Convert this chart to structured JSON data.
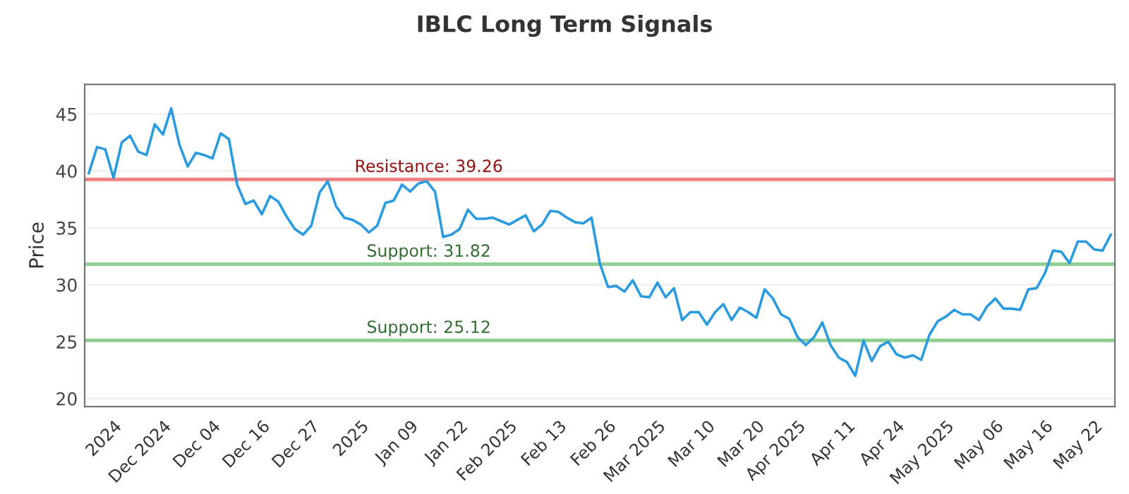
{
  "chart_data": {
    "type": "line",
    "title": "IBLC Long Term Signals",
    "ylabel": "Price",
    "categories": [
      null,
      null,
      null,
      "2024",
      null,
      null,
      null,
      null,
      null,
      "Dec 2024",
      null,
      null,
      null,
      null,
      null,
      "Dec 04",
      null,
      null,
      null,
      null,
      null,
      "Dec 16",
      null,
      null,
      null,
      null,
      null,
      "Dec 27",
      null,
      null,
      null,
      null,
      null,
      "2025",
      null,
      null,
      null,
      null,
      null,
      "Jan 09",
      null,
      null,
      null,
      null,
      null,
      "Jan 22",
      null,
      null,
      null,
      null,
      null,
      "Feb 2025",
      null,
      null,
      null,
      null,
      null,
      "Feb 13",
      null,
      null,
      null,
      null,
      null,
      "Feb 26",
      null,
      null,
      null,
      null,
      null,
      "Mar 2025",
      null,
      null,
      null,
      null,
      null,
      "Mar 10",
      null,
      null,
      null,
      null,
      null,
      "Mar 20",
      null,
      null,
      null,
      null,
      "Apr 2025",
      null,
      null,
      null,
      null,
      null,
      "Apr 11",
      null,
      null,
      null,
      null,
      null,
      "Apr 24",
      null,
      null,
      null,
      null,
      null,
      "May 2025",
      null,
      null,
      null,
      null,
      null,
      "May 06",
      null,
      null,
      null,
      null,
      null,
      "May 16",
      null,
      null,
      null,
      null,
      null,
      "May 22",
      null,
      null
    ],
    "series": [
      {
        "color": "#2b9be0",
        "values": [
          39.8,
          42.1,
          41.9,
          39.4,
          42.5,
          43.1,
          41.7,
          41.4,
          44.1,
          43.2,
          45.5,
          42.3,
          40.4,
          41.6,
          41.4,
          41.1,
          43.3,
          42.8,
          38.8,
          37.1,
          37.4,
          36.2,
          37.8,
          37.3,
          36.0,
          34.9,
          34.4,
          35.2,
          38.1,
          39.1,
          36.9,
          35.9,
          35.7,
          35.3,
          34.6,
          35.2,
          37.2,
          37.4,
          38.8,
          38.2,
          38.9,
          39.1,
          38.2,
          34.2,
          34.4,
          34.9,
          36.6,
          35.8,
          35.8,
          35.9,
          35.6,
          35.3,
          35.7,
          36.1,
          34.7,
          35.3,
          36.5,
          36.4,
          35.9,
          35.5,
          35.4,
          35.9,
          31.9,
          29.8,
          29.9,
          29.4,
          30.4,
          29.0,
          28.9,
          30.2,
          28.9,
          29.7,
          26.9,
          27.6,
          27.6,
          26.5,
          27.6,
          28.3,
          26.9,
          28.0,
          27.6,
          27.1,
          29.6,
          28.8,
          27.4,
          27.0,
          25.4,
          24.7,
          25.4,
          26.7,
          24.7,
          23.6,
          23.2,
          22.0,
          25.1,
          23.3,
          24.6,
          25.0,
          23.9,
          23.6,
          23.8,
          23.4,
          25.6,
          26.8,
          27.2,
          27.8,
          27.4,
          27.4,
          26.9,
          28.1,
          28.8,
          27.9,
          27.9,
          27.8,
          29.6,
          29.7,
          31.0,
          33.0,
          32.9,
          31.9,
          33.8,
          33.8,
          33.1,
          33.0,
          34.4
        ]
      }
    ],
    "ylim": [
      19.3,
      47.6
    ],
    "yticks": [
      20,
      25,
      30,
      35,
      40,
      45
    ],
    "grid": "y",
    "ref_lines": [
      {
        "axis": "y",
        "value": 39.26,
        "label": "Resistance: 39.26",
        "color": "#f07f7f"
      },
      {
        "axis": "y",
        "value": 31.82,
        "label": "Support: 31.82",
        "color": "#8fcf8f"
      },
      {
        "axis": "y",
        "value": 25.12,
        "label": "Support: 25.12",
        "color": "#8fcf8f"
      }
    ]
  }
}
